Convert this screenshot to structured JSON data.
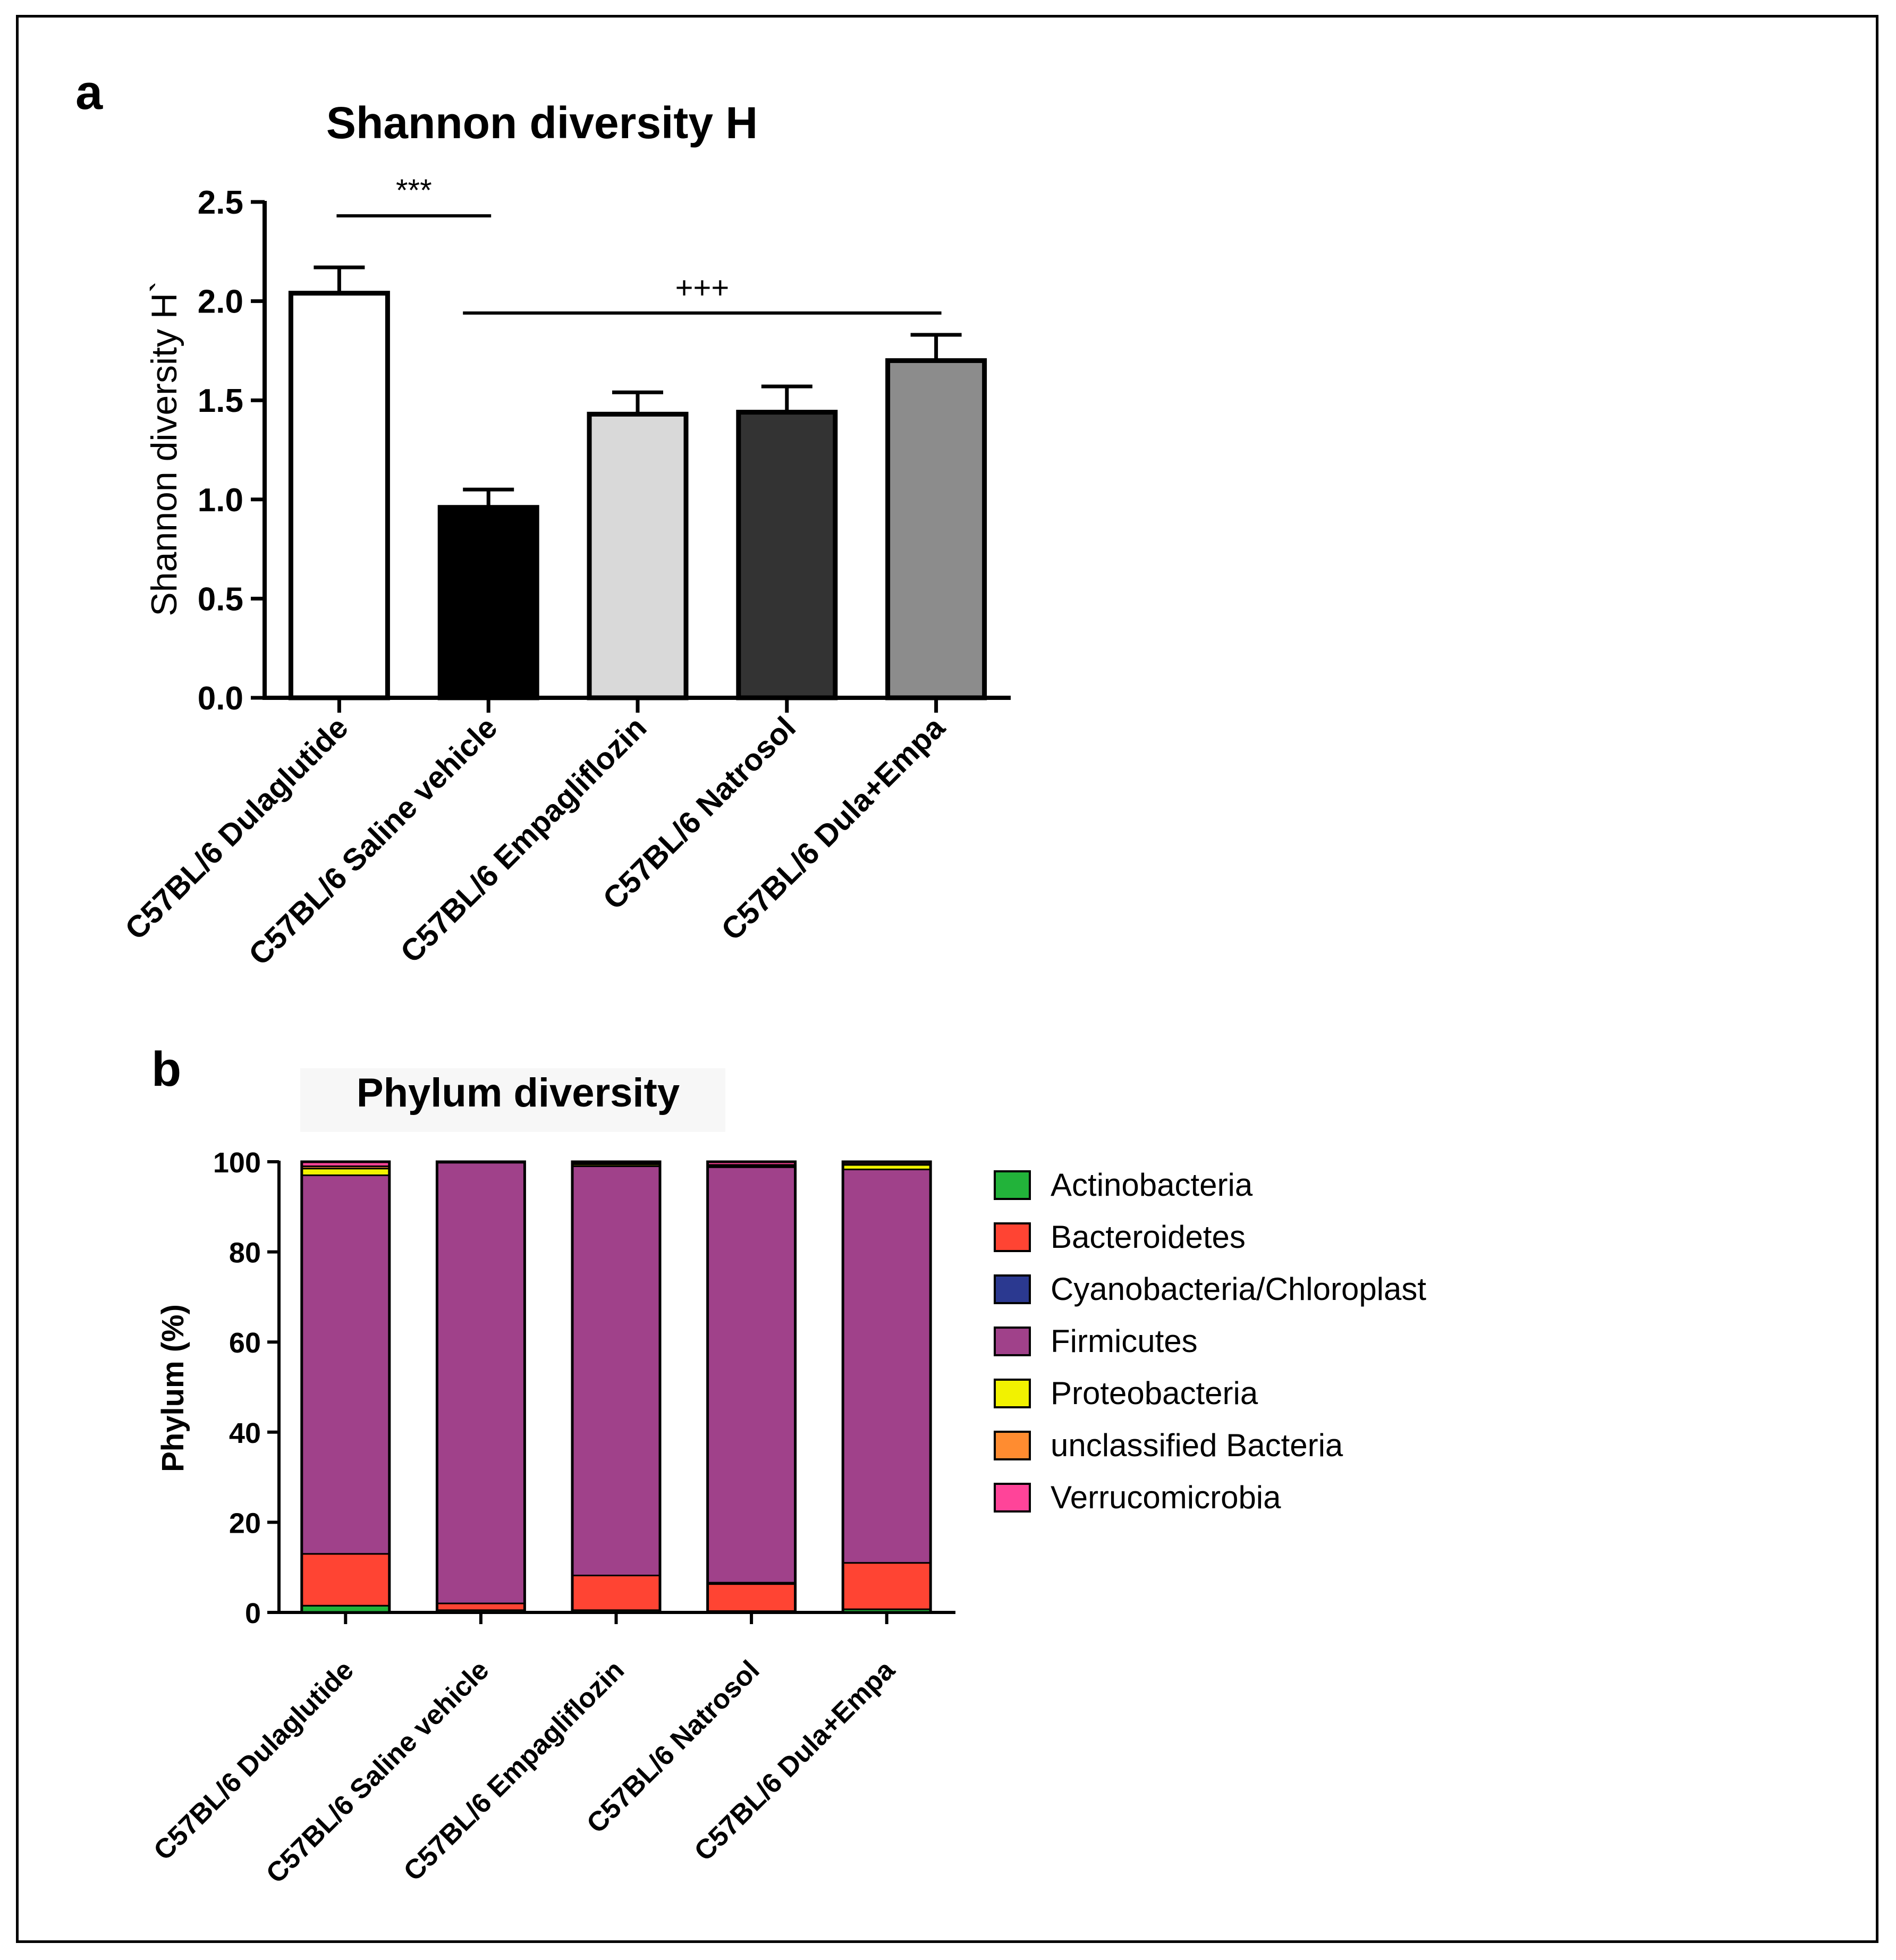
{
  "panels": {
    "a": {
      "letter": "a"
    },
    "b": {
      "letter": "b"
    }
  },
  "chart_data": [
    {
      "type": "bar",
      "title": "Shannon diversity H",
      "xlabel": "",
      "ylabel": "Shannon diversity H`",
      "ylim": [
        0,
        2.5
      ],
      "yticks": [
        "0.0",
        "0.5",
        "1.0",
        "1.5",
        "2.0",
        "2.5"
      ],
      "categories": [
        "C57BL/6 Dulaglutide",
        "C57BL/6 Saline vehicle",
        "C57BL/6 Empagliflozin",
        "C57BL/6 Natrosol",
        "C57BL/6 Dula+Empa"
      ],
      "values": [
        2.04,
        0.96,
        1.43,
        1.44,
        1.7
      ],
      "errors": [
        0.13,
        0.09,
        0.11,
        0.13,
        0.13
      ],
      "bar_colors": [
        "#ffffff",
        "#000000",
        "#d9d9d9",
        "#333333",
        "#8c8c8c"
      ],
      "annotations": [
        {
          "text": "***",
          "from": 0,
          "to": 1,
          "y": 2.43
        },
        {
          "text": "+++",
          "from": 1,
          "to": 4,
          "y": 1.94
        }
      ]
    },
    {
      "type": "bar",
      "stacked": true,
      "title": "Phylum diversity",
      "xlabel": "",
      "ylabel": "Phylum (%)",
      "ylim": [
        0,
        100
      ],
      "yticks": [
        "0",
        "20",
        "40",
        "60",
        "80",
        "100"
      ],
      "categories": [
        "C57BL/6 Dulaglutide",
        "C57BL/6 Saline vehicle",
        "C57BL/6 Empagliflozin",
        "C57BL/6 Natrosol",
        "C57BL/6 Dula+Empa"
      ],
      "legend_position": "right",
      "series": [
        {
          "name": "Actinobacteria",
          "color": "#22b33a",
          "values": [
            1.5,
            0.5,
            0.5,
            0.3,
            0.7
          ]
        },
        {
          "name": "Bacteroidetes",
          "color": "#ff4433",
          "values": [
            11.5,
            1.5,
            7.7,
            6.0,
            10.3
          ]
        },
        {
          "name": "Cyanobacteria/Chloroplast",
          "color": "#2b3990",
          "values": [
            0.0,
            0.0,
            0.0,
            0.3,
            0.0
          ]
        },
        {
          "name": "Firmicutes",
          "color": "#a0418a",
          "values": [
            84.0,
            97.8,
            90.8,
            92.2,
            87.3
          ]
        },
        {
          "name": "Proteobacteria",
          "color": "#f2f200",
          "values": [
            1.5,
            0.1,
            0.4,
            0.3,
            1.0
          ]
        },
        {
          "name": "unclassified Bacteria",
          "color": "#ff8c30",
          "values": [
            0.5,
            0.05,
            0.2,
            0.2,
            0.2
          ]
        },
        {
          "name": "Verrucomicrobia",
          "color": "#ff4499",
          "values": [
            1.0,
            0.05,
            0.4,
            0.7,
            0.5
          ]
        }
      ]
    }
  ]
}
